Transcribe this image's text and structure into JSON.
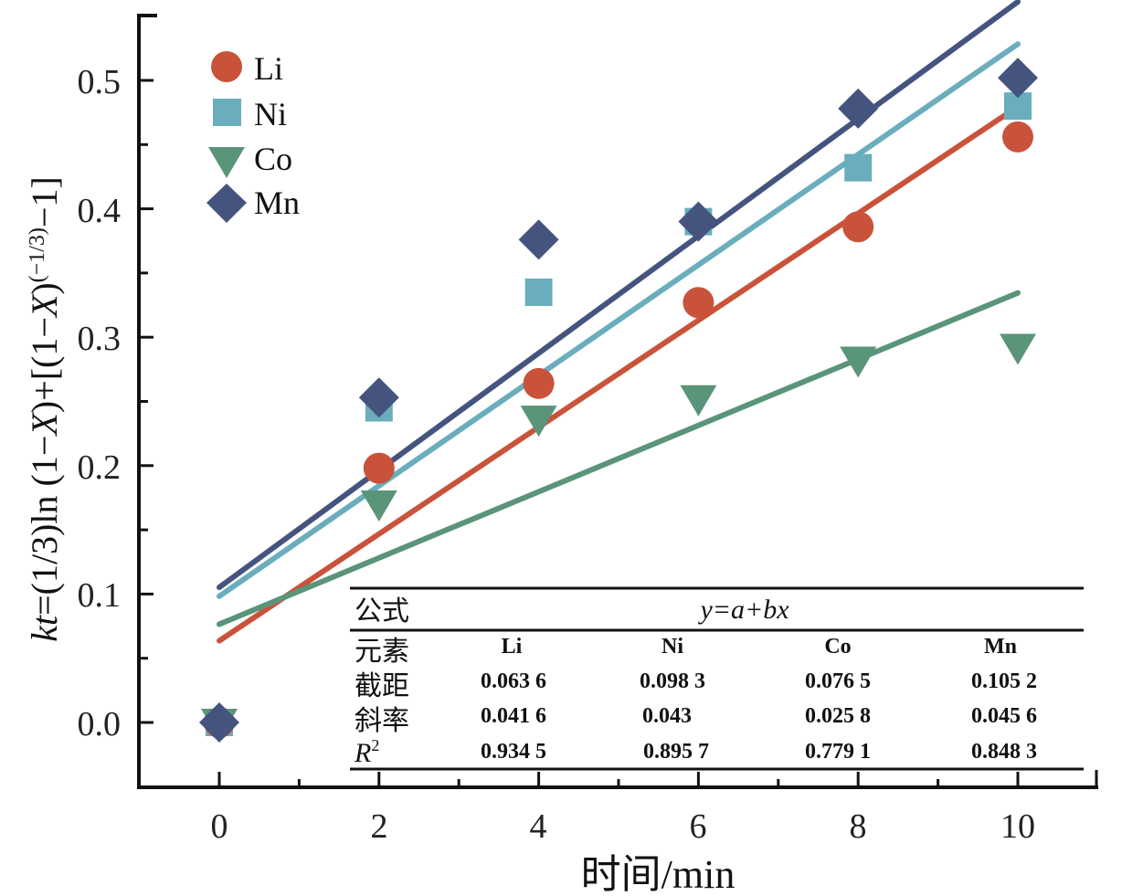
{
  "chart_data": {
    "type": "scatter",
    "title": "",
    "xlabel": "时间/min",
    "ylabel": "kt=(1/3)ln(1−X)+[(1−X)^(−1/3)−1]",
    "ylabel_parts": {
      "kt": "kt",
      "eq": "=(1/3)ln (1−",
      "X1": "X",
      "mid": ")+[(1−",
      "X2": "X",
      "close": ")",
      "sup": "(−1/3)",
      "tail": "−1]"
    },
    "xlim": [
      -1,
      11
    ],
    "ylim": [
      -0.05,
      0.55
    ],
    "x_ticks": [
      0,
      2,
      4,
      6,
      8,
      10
    ],
    "x_tick_labels": [
      "0",
      "2",
      "4",
      "6",
      "8",
      "10"
    ],
    "y_ticks": [
      0.0,
      0.1,
      0.2,
      0.3,
      0.4,
      0.5
    ],
    "y_tick_labels": [
      "0.0",
      "0.1",
      "0.2",
      "0.3",
      "0.4",
      "0.5"
    ],
    "grid": false,
    "legend_position": "top-left",
    "x": [
      0,
      2,
      4,
      6,
      8,
      10
    ],
    "series": [
      {
        "name": "Li",
        "marker": "circle",
        "color": "#c9533a",
        "values": [
          0.0,
          0.198,
          0.264,
          0.327,
          0.386,
          0.456
        ],
        "fit": {
          "intercept": 0.0636,
          "slope": 0.0416
        }
      },
      {
        "name": "Ni",
        "marker": "square",
        "color": "#6aadbd",
        "values": [
          0.0,
          0.245,
          0.335,
          0.39,
          0.432,
          0.48
        ],
        "fit": {
          "intercept": 0.0983,
          "slope": 0.043
        }
      },
      {
        "name": "Co",
        "marker": "triangle-down",
        "color": "#5a9479",
        "values": [
          0.0,
          0.17,
          0.236,
          0.252,
          0.282,
          0.292
        ],
        "fit": {
          "intercept": 0.0765,
          "slope": 0.0258
        }
      },
      {
        "name": "Mn",
        "marker": "diamond",
        "color": "#45547f",
        "values": [
          0.0,
          0.253,
          0.376,
          0.39,
          0.478,
          0.502
        ],
        "fit": {
          "intercept": 0.1052,
          "slope": 0.0456
        }
      }
    ],
    "fit_table": {
      "formula_label": "公式",
      "formula": "y=a+bx",
      "header_label": "元素",
      "columns": [
        "Li",
        "Ni",
        "Co",
        "Mn"
      ],
      "rows": [
        {
          "label": "截距",
          "values": [
            "0.063 6",
            "0.098 3",
            "0.076 5",
            "0.105 2"
          ]
        },
        {
          "label": "斜率",
          "values": [
            "0.041 6",
            "0.043",
            "0.025 8",
            "0.045 6"
          ]
        },
        {
          "label": "R²",
          "label_main": "R",
          "label_sup": "2",
          "values": [
            "0.934 5",
            "0.895 7",
            "0.779 1",
            "0.848 3"
          ]
        }
      ]
    }
  }
}
